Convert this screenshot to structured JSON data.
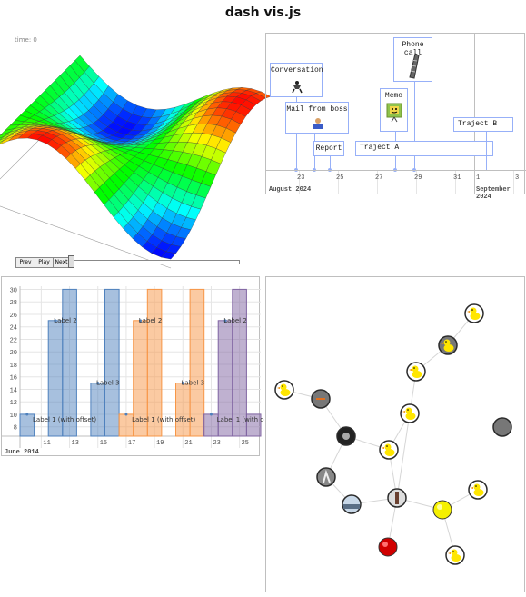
{
  "page": {
    "title": "dash vis.js"
  },
  "graph3d": {
    "time_label": "time: 0",
    "buttons": {
      "prev": "Prev",
      "play": "Play",
      "next": "Next"
    },
    "slider_value": 0
  },
  "timeline": {
    "items": [
      {
        "id": "conversation",
        "type": "box",
        "content": "Conversation",
        "icon": "person-icon"
      },
      {
        "id": "mail",
        "type": "box",
        "content": "Mail from boss",
        "icon": "mail-person-icon"
      },
      {
        "id": "report",
        "type": "point",
        "content": "Report"
      },
      {
        "id": "memo",
        "type": "box",
        "content": "Memo",
        "icon": "memo-face-icon"
      },
      {
        "id": "phone",
        "type": "box",
        "content": "Phone call",
        "icon": "phone-icon"
      },
      {
        "id": "project_a",
        "type": "range",
        "content": "Traject A"
      },
      {
        "id": "project_b",
        "type": "point",
        "content": "Traject B"
      }
    ],
    "minor_ticks": [
      "23",
      "25",
      "27",
      "29",
      "31",
      "1",
      "3"
    ],
    "major_labels": [
      "August 2024",
      "September 2024"
    ]
  },
  "graph2d": {
    "chart_data": {
      "type": "bar",
      "x_ticks": [
        "11",
        "13",
        "15",
        "17",
        "19",
        "21",
        "23",
        "25"
      ],
      "major_label": "June 2014",
      "y_ticks": [
        "30",
        "28",
        "26",
        "24",
        "22",
        "20",
        "18",
        "16",
        "14",
        "12",
        "10",
        "8"
      ],
      "ylim": [
        6.5,
        30.5
      ],
      "xlim": [
        9.5,
        26.5
      ],
      "series": [
        {
          "color": "#4f81bd",
          "bars": [
            {
              "x": 10,
              "y": 10
            },
            {
              "x": 12,
              "y": 25
            },
            {
              "x": 13,
              "y": 30
            },
            {
              "x": 15,
              "y": 15
            },
            {
              "x": 16,
              "y": 30
            }
          ]
        },
        {
          "color": "#f79646",
          "bars": [
            {
              "x": 17,
              "y": 10
            },
            {
              "x": 18,
              "y": 25
            },
            {
              "x": 19,
              "y": 30
            },
            {
              "x": 21,
              "y": 15
            },
            {
              "x": 22,
              "y": 30
            }
          ]
        },
        {
          "color": "#8064a2",
          "bars": [
            {
              "x": 23,
              "y": 10
            },
            {
              "x": 24,
              "y": 25
            },
            {
              "x": 25,
              "y": 30
            },
            {
              "x": 26,
              "y": 10
            }
          ]
        }
      ],
      "labels": [
        {
          "x": 12,
          "y": 25,
          "text": "Label 2"
        },
        {
          "x": 15,
          "y": 15,
          "text": "Label 3"
        },
        {
          "x": 10,
          "y": 10,
          "text": "Label 1 (with offset)"
        },
        {
          "x": 18,
          "y": 25,
          "text": "Label 2"
        },
        {
          "x": 21,
          "y": 15,
          "text": "Label 3"
        },
        {
          "x": 17,
          "y": 10,
          "text": "Label 1 (with offset)"
        },
        {
          "x": 24,
          "y": 25,
          "text": "Label 2"
        },
        {
          "x": 23,
          "y": 10,
          "text": "Label 1 (with o"
        }
      ]
    }
  },
  "network": {
    "nodes": [
      {
        "id": 1,
        "kind": "duck",
        "label": ""
      },
      {
        "id": 2,
        "kind": "duck-gray",
        "label": ""
      },
      {
        "id": 3,
        "kind": "duck",
        "label": ""
      },
      {
        "id": 4,
        "kind": "duck",
        "label": ""
      },
      {
        "id": 5,
        "kind": "gray-dash",
        "label": ""
      },
      {
        "id": 6,
        "kind": "duck",
        "label": ""
      },
      {
        "id": 7,
        "kind": "photo-dark",
        "label": ""
      },
      {
        "id": 8,
        "kind": "duck",
        "label": ""
      },
      {
        "id": 9,
        "kind": "photo-figure",
        "label": ""
      },
      {
        "id": 10,
        "kind": "gray-plain",
        "label": ""
      },
      {
        "id": 11,
        "kind": "photo-dancer",
        "label": ""
      },
      {
        "id": 12,
        "kind": "photo-landscape",
        "label": ""
      },
      {
        "id": 13,
        "kind": "yellow-ball",
        "label": ""
      },
      {
        "id": 14,
        "kind": "duck",
        "label": ""
      },
      {
        "id": 15,
        "kind": "red-ball",
        "label": ""
      },
      {
        "id": 16,
        "kind": "duck",
        "label": ""
      }
    ]
  }
}
